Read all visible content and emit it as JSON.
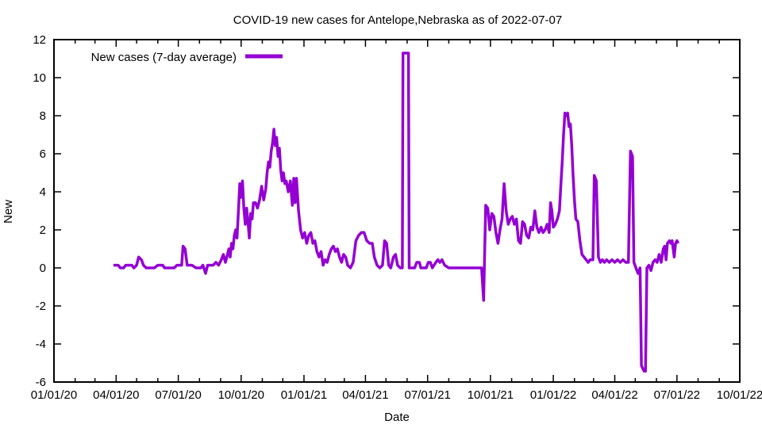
{
  "chart_data": {
    "type": "line",
    "title": "COVID-19 new cases for Antelope,Nebraska as of 2022-07-07",
    "xlabel": "Date",
    "ylabel": "New",
    "x_range": [
      "2020-01-01",
      "2022-10-01"
    ],
    "ylim": [
      -6,
      12
    ],
    "grid": false,
    "line_color": "#9400D3",
    "legend": {
      "label": "New cases (7-day average)",
      "position": "top-left"
    },
    "y_ticks": [
      -6,
      -4,
      -2,
      0,
      2,
      4,
      6,
      8,
      10,
      12
    ],
    "x_ticks": [
      {
        "date": "2020-01-01",
        "label": "01/01/20"
      },
      {
        "date": "2020-04-01",
        "label": "04/01/20"
      },
      {
        "date": "2020-07-01",
        "label": "07/01/20"
      },
      {
        "date": "2020-10-01",
        "label": "10/01/20"
      },
      {
        "date": "2021-01-01",
        "label": "01/01/21"
      },
      {
        "date": "2021-04-01",
        "label": "04/01/21"
      },
      {
        "date": "2021-07-01",
        "label": "07/01/21"
      },
      {
        "date": "2021-10-01",
        "label": "10/01/21"
      },
      {
        "date": "2022-01-01",
        "label": "01/01/22"
      },
      {
        "date": "2022-04-01",
        "label": "04/01/22"
      },
      {
        "date": "2022-07-01",
        "label": "07/01/22"
      },
      {
        "date": "2022-10-01",
        "label": "10/01/22"
      }
    ],
    "series": [
      {
        "name": "New cases (7-day average)",
        "points": [
          [
            "2020-03-28",
            0.14
          ],
          [
            "2020-04-04",
            0.14
          ],
          [
            "2020-04-07",
            0.0
          ],
          [
            "2020-04-12",
            0.0
          ],
          [
            "2020-04-15",
            0.14
          ],
          [
            "2020-04-24",
            0.14
          ],
          [
            "2020-04-27",
            0.0
          ],
          [
            "2020-05-01",
            0.14
          ],
          [
            "2020-05-04",
            0.57
          ],
          [
            "2020-05-08",
            0.43
          ],
          [
            "2020-05-11",
            0.14
          ],
          [
            "2020-05-15",
            0.0
          ],
          [
            "2020-05-27",
            0.0
          ],
          [
            "2020-06-01",
            0.14
          ],
          [
            "2020-06-08",
            0.14
          ],
          [
            "2020-06-11",
            0.0
          ],
          [
            "2020-06-25",
            0.0
          ],
          [
            "2020-06-29",
            0.14
          ],
          [
            "2020-07-06",
            0.14
          ],
          [
            "2020-07-08",
            1.14
          ],
          [
            "2020-07-11",
            1.0
          ],
          [
            "2020-07-14",
            0.14
          ],
          [
            "2020-07-21",
            0.14
          ],
          [
            "2020-07-27",
            0.0
          ],
          [
            "2020-08-03",
            0.0
          ],
          [
            "2020-08-06",
            0.14
          ],
          [
            "2020-08-10",
            -0.29
          ],
          [
            "2020-08-13",
            0.14
          ],
          [
            "2020-08-21",
            0.14
          ],
          [
            "2020-08-25",
            0.29
          ],
          [
            "2020-08-29",
            0.14
          ],
          [
            "2020-09-02",
            0.43
          ],
          [
            "2020-09-05",
            0.71
          ],
          [
            "2020-09-08",
            0.29
          ],
          [
            "2020-09-11",
            0.71
          ],
          [
            "2020-09-13",
            1.0
          ],
          [
            "2020-09-15",
            0.57
          ],
          [
            "2020-09-17",
            1.29
          ],
          [
            "2020-09-19",
            1.0
          ],
          [
            "2020-09-21",
            1.71
          ],
          [
            "2020-09-23",
            2.0
          ],
          [
            "2020-09-25",
            1.57
          ],
          [
            "2020-09-27",
            3.0
          ],
          [
            "2020-09-29",
            4.43
          ],
          [
            "2020-10-01",
            3.71
          ],
          [
            "2020-10-03",
            4.57
          ],
          [
            "2020-10-05",
            3.14
          ],
          [
            "2020-10-07",
            2.29
          ],
          [
            "2020-10-09",
            3.14
          ],
          [
            "2020-10-11",
            2.43
          ],
          [
            "2020-10-13",
            1.57
          ],
          [
            "2020-10-15",
            2.86
          ],
          [
            "2020-10-17",
            2.57
          ],
          [
            "2020-10-19",
            3.43
          ],
          [
            "2020-10-22",
            3.43
          ],
          [
            "2020-10-25",
            3.14
          ],
          [
            "2020-10-28",
            3.57
          ],
          [
            "2020-10-31",
            4.29
          ],
          [
            "2020-11-03",
            3.57
          ],
          [
            "2020-11-06",
            4.14
          ],
          [
            "2020-11-08",
            5.0
          ],
          [
            "2020-11-10",
            5.57
          ],
          [
            "2020-11-12",
            5.29
          ],
          [
            "2020-11-14",
            6.14
          ],
          [
            "2020-11-16",
            6.57
          ],
          [
            "2020-11-18",
            7.29
          ],
          [
            "2020-11-20",
            6.43
          ],
          [
            "2020-11-22",
            6.86
          ],
          [
            "2020-11-24",
            5.86
          ],
          [
            "2020-11-26",
            6.29
          ],
          [
            "2020-11-28",
            5.14
          ],
          [
            "2020-11-30",
            4.57
          ],
          [
            "2020-12-02",
            5.0
          ],
          [
            "2020-12-04",
            4.43
          ],
          [
            "2020-12-06",
            4.57
          ],
          [
            "2020-12-09",
            4.0
          ],
          [
            "2020-12-12",
            4.57
          ],
          [
            "2020-12-15",
            3.29
          ],
          [
            "2020-12-17",
            4.71
          ],
          [
            "2020-12-19",
            3.43
          ],
          [
            "2020-12-21",
            4.71
          ],
          [
            "2020-12-24",
            3.0
          ],
          [
            "2020-12-27",
            2.0
          ],
          [
            "2020-12-30",
            1.57
          ],
          [
            "2021-01-02",
            1.86
          ],
          [
            "2021-01-05",
            1.29
          ],
          [
            "2021-01-08",
            1.71
          ],
          [
            "2021-01-11",
            1.86
          ],
          [
            "2021-01-14",
            1.29
          ],
          [
            "2021-01-17",
            1.43
          ],
          [
            "2021-01-20",
            0.86
          ],
          [
            "2021-01-23",
            0.57
          ],
          [
            "2021-01-26",
            0.86
          ],
          [
            "2021-01-29",
            0.14
          ],
          [
            "2021-02-01",
            0.43
          ],
          [
            "2021-02-04",
            0.29
          ],
          [
            "2021-02-07",
            0.71
          ],
          [
            "2021-02-10",
            1.0
          ],
          [
            "2021-02-13",
            1.14
          ],
          [
            "2021-02-16",
            0.86
          ],
          [
            "2021-02-19",
            1.0
          ],
          [
            "2021-02-22",
            0.57
          ],
          [
            "2021-02-25",
            0.29
          ],
          [
            "2021-02-28",
            0.71
          ],
          [
            "2021-03-03",
            0.57
          ],
          [
            "2021-03-06",
            0.14
          ],
          [
            "2021-03-10",
            0.0
          ],
          [
            "2021-03-14",
            0.29
          ],
          [
            "2021-03-18",
            1.43
          ],
          [
            "2021-03-22",
            1.71
          ],
          [
            "2021-03-26",
            1.86
          ],
          [
            "2021-03-30",
            1.86
          ],
          [
            "2021-04-03",
            1.43
          ],
          [
            "2021-04-07",
            1.29
          ],
          [
            "2021-04-11",
            1.29
          ],
          [
            "2021-04-14",
            0.57
          ],
          [
            "2021-04-18",
            0.14
          ],
          [
            "2021-04-22",
            0.0
          ],
          [
            "2021-04-26",
            0.14
          ],
          [
            "2021-04-29",
            1.43
          ],
          [
            "2021-05-02",
            1.29
          ],
          [
            "2021-05-05",
            0.14
          ],
          [
            "2021-05-08",
            0.0
          ],
          [
            "2021-05-12",
            0.57
          ],
          [
            "2021-05-15",
            0.71
          ],
          [
            "2021-05-18",
            0.14
          ],
          [
            "2021-05-22",
            0.0
          ],
          [
            "2021-05-25",
            0.0
          ],
          [
            "2021-05-26",
            11.29
          ],
          [
            "2021-06-03",
            11.29
          ],
          [
            "2021-06-04",
            0.0
          ],
          [
            "2021-06-12",
            0.0
          ],
          [
            "2021-06-15",
            0.29
          ],
          [
            "2021-06-19",
            0.29
          ],
          [
            "2021-06-21",
            0.0
          ],
          [
            "2021-06-29",
            0.0
          ],
          [
            "2021-07-02",
            0.29
          ],
          [
            "2021-07-05",
            0.29
          ],
          [
            "2021-07-08",
            0.0
          ],
          [
            "2021-07-13",
            0.29
          ],
          [
            "2021-07-16",
            0.43
          ],
          [
            "2021-07-19",
            0.29
          ],
          [
            "2021-07-22",
            0.43
          ],
          [
            "2021-07-26",
            0.14
          ],
          [
            "2021-08-01",
            0.0
          ],
          [
            "2021-09-18",
            0.0
          ],
          [
            "2021-09-21",
            -1.71
          ],
          [
            "2021-09-24",
            3.29
          ],
          [
            "2021-09-27",
            3.14
          ],
          [
            "2021-09-30",
            2.0
          ],
          [
            "2021-10-03",
            2.86
          ],
          [
            "2021-10-06",
            2.71
          ],
          [
            "2021-10-09",
            1.86
          ],
          [
            "2021-10-12",
            1.29
          ],
          [
            "2021-10-15",
            2.0
          ],
          [
            "2021-10-18",
            2.57
          ],
          [
            "2021-10-21",
            4.43
          ],
          [
            "2021-10-24",
            3.0
          ],
          [
            "2021-10-27",
            2.29
          ],
          [
            "2021-10-30",
            2.57
          ],
          [
            "2021-11-02",
            2.71
          ],
          [
            "2021-11-05",
            2.29
          ],
          [
            "2021-11-08",
            2.57
          ],
          [
            "2021-11-11",
            1.43
          ],
          [
            "2021-11-14",
            1.29
          ],
          [
            "2021-11-17",
            2.43
          ],
          [
            "2021-11-20",
            2.29
          ],
          [
            "2021-11-23",
            1.71
          ],
          [
            "2021-11-26",
            1.57
          ],
          [
            "2021-11-29",
            2.14
          ],
          [
            "2021-12-02",
            2.0
          ],
          [
            "2021-12-05",
            3.0
          ],
          [
            "2021-12-08",
            2.14
          ],
          [
            "2021-12-11",
            1.86
          ],
          [
            "2021-12-14",
            2.14
          ],
          [
            "2021-12-17",
            1.86
          ],
          [
            "2021-12-20",
            2.0
          ],
          [
            "2021-12-23",
            2.29
          ],
          [
            "2021-12-26",
            1.86
          ],
          [
            "2021-12-28",
            3.43
          ],
          [
            "2021-12-30",
            3.0
          ],
          [
            "2022-01-01",
            2.14
          ],
          [
            "2022-01-04",
            2.29
          ],
          [
            "2022-01-07",
            2.57
          ],
          [
            "2022-01-10",
            3.0
          ],
          [
            "2022-01-12",
            4.29
          ],
          [
            "2022-01-14",
            5.57
          ],
          [
            "2022-01-16",
            7.0
          ],
          [
            "2022-01-18",
            8.14
          ],
          [
            "2022-01-20",
            8.0
          ],
          [
            "2022-01-22",
            8.14
          ],
          [
            "2022-01-24",
            7.43
          ],
          [
            "2022-01-26",
            7.57
          ],
          [
            "2022-01-28",
            6.43
          ],
          [
            "2022-01-30",
            4.86
          ],
          [
            "2022-02-01",
            3.57
          ],
          [
            "2022-02-03",
            2.57
          ],
          [
            "2022-02-06",
            2.43
          ],
          [
            "2022-02-09",
            1.43
          ],
          [
            "2022-02-12",
            0.71
          ],
          [
            "2022-02-15",
            0.57
          ],
          [
            "2022-02-18",
            0.43
          ],
          [
            "2022-02-21",
            0.29
          ],
          [
            "2022-02-24",
            0.43
          ],
          [
            "2022-02-28",
            0.43
          ],
          [
            "2022-03-02",
            4.86
          ],
          [
            "2022-03-05",
            4.57
          ],
          [
            "2022-03-08",
            0.57
          ],
          [
            "2022-03-11",
            0.29
          ],
          [
            "2022-03-14",
            0.43
          ],
          [
            "2022-03-17",
            0.29
          ],
          [
            "2022-03-20",
            0.43
          ],
          [
            "2022-03-24",
            0.29
          ],
          [
            "2022-03-28",
            0.43
          ],
          [
            "2022-04-01",
            0.29
          ],
          [
            "2022-04-05",
            0.43
          ],
          [
            "2022-04-09",
            0.29
          ],
          [
            "2022-04-13",
            0.43
          ],
          [
            "2022-04-17",
            0.29
          ],
          [
            "2022-04-21",
            0.29
          ],
          [
            "2022-04-24",
            6.14
          ],
          [
            "2022-04-27",
            5.86
          ],
          [
            "2022-04-29",
            0.29
          ],
          [
            "2022-05-02",
            0.0
          ],
          [
            "2022-05-05",
            -0.29
          ],
          [
            "2022-05-08",
            0.0
          ],
          [
            "2022-05-10",
            -5.14
          ],
          [
            "2022-05-12",
            -5.29
          ],
          [
            "2022-05-14",
            -5.43
          ],
          [
            "2022-05-16",
            -5.43
          ],
          [
            "2022-05-18",
            0.0
          ],
          [
            "2022-05-21",
            0.14
          ],
          [
            "2022-05-24",
            -0.14
          ],
          [
            "2022-05-27",
            0.29
          ],
          [
            "2022-05-30",
            0.43
          ],
          [
            "2022-06-02",
            0.29
          ],
          [
            "2022-06-05",
            0.71
          ],
          [
            "2022-06-08",
            0.29
          ],
          [
            "2022-06-11",
            1.0
          ],
          [
            "2022-06-13",
            1.14
          ],
          [
            "2022-06-15",
            0.43
          ],
          [
            "2022-06-17",
            1.29
          ],
          [
            "2022-06-20",
            1.43
          ],
          [
            "2022-06-22",
            1.29
          ],
          [
            "2022-06-24",
            1.43
          ],
          [
            "2022-06-27",
            0.57
          ],
          [
            "2022-06-29",
            1.29
          ],
          [
            "2022-07-01",
            1.43
          ],
          [
            "2022-07-03",
            1.29
          ]
        ]
      }
    ]
  }
}
